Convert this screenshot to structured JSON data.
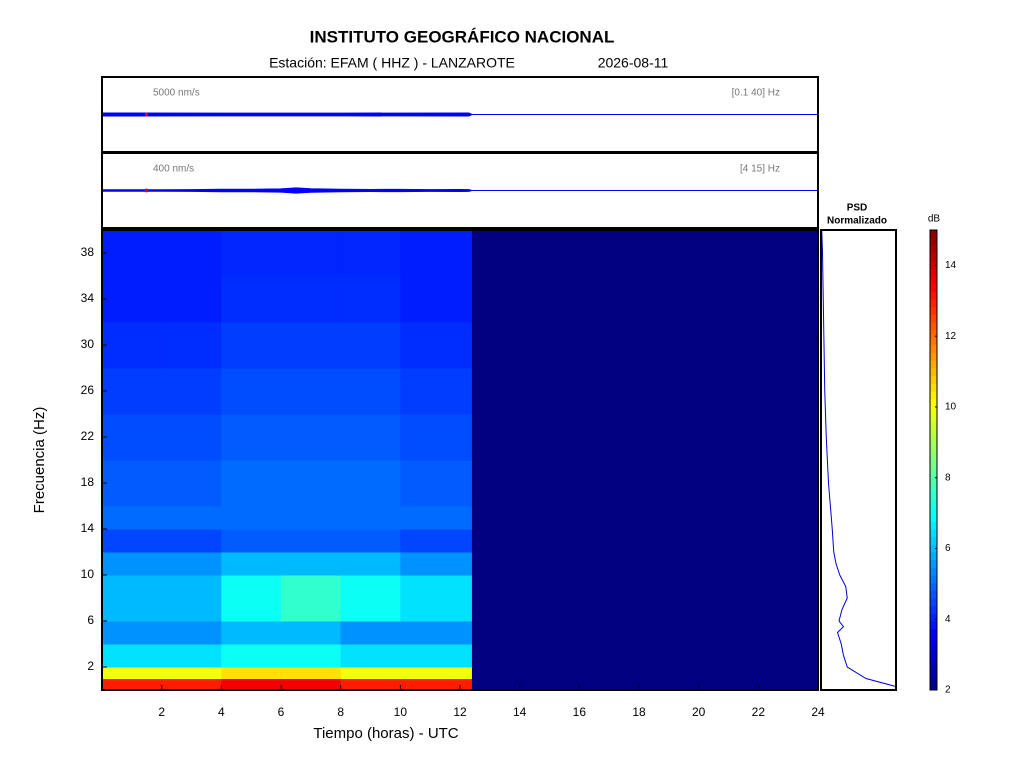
{
  "header": {
    "title": "INSTITUTO GEOGRÁFICO NACIONAL",
    "station": "Estación:  EFAM ( HHZ ) - LANZAROTE",
    "date": "2026-08-11"
  },
  "chart_data": [
    {
      "type": "trace",
      "color": "#0000ff",
      "scale_color": "#e00000",
      "scale_bar": {
        "value": 5000,
        "label": "5000 nm/s"
      },
      "band": "[0.1 40] Hz",
      "xlim": [
        0,
        24
      ],
      "ylim": [
        -53000,
        53000
      ],
      "x": [
        0,
        4,
        8,
        12.3,
        12.4,
        24
      ],
      "values": [
        2200,
        2000,
        2000,
        2100,
        0,
        0
      ]
    },
    {
      "type": "trace",
      "color": "#0000ff",
      "scale_color": "#e00000",
      "scale_bar": {
        "value": 400,
        "label": "400 nm/s"
      },
      "band": "[4 15] Hz",
      "xlim": [
        0,
        24
      ],
      "ylim": [
        -4300,
        4300
      ],
      "x": [
        0,
        2,
        3,
        4,
        5,
        6,
        6.5,
        7,
        8,
        9,
        10,
        11,
        12,
        12.3,
        12.4,
        24
      ],
      "values": [
        80,
        90,
        100,
        150,
        140,
        180,
        300,
        200,
        150,
        120,
        130,
        100,
        110,
        100,
        0,
        0
      ]
    },
    {
      "type": "heatmap",
      "xlabel": "Tiempo (horas) - UTC",
      "ylabel": "Frecuencia  (Hz)",
      "xlim": [
        0,
        24
      ],
      "ylim": [
        0,
        40
      ],
      "xticks": [
        2,
        4,
        6,
        8,
        10,
        12,
        14,
        16,
        18,
        20,
        22,
        24
      ],
      "yticks": [
        2,
        6,
        10,
        14,
        18,
        22,
        26,
        30,
        34,
        38
      ],
      "x_bins": [
        0,
        2,
        4,
        6,
        8,
        10,
        12.4,
        24
      ],
      "y_bins": [
        0,
        1,
        2,
        4,
        6,
        8,
        10,
        12,
        14,
        16,
        20,
        24,
        28,
        32,
        36,
        40
      ],
      "z": [
        [
          13,
          13,
          13.5,
          13.5,
          13,
          13,
          2
        ],
        [
          10,
          10,
          10.5,
          10.5,
          10,
          10,
          2
        ],
        [
          6.5,
          6.5,
          7,
          7,
          6.5,
          6.5,
          2
        ],
        [
          5.5,
          5.5,
          6,
          6,
          5.5,
          5.5,
          2
        ],
        [
          6,
          6,
          7,
          7.5,
          7,
          6.5,
          2
        ],
        [
          6,
          6,
          7,
          7.5,
          7,
          6.5,
          2
        ],
        [
          5.5,
          5.5,
          6,
          6,
          6,
          5.5,
          2
        ],
        [
          4.5,
          4.5,
          4.8,
          4.8,
          4.8,
          4.5,
          2
        ],
        [
          5,
          5,
          5,
          5,
          5,
          5,
          2
        ],
        [
          4.8,
          4.8,
          5,
          5,
          5,
          4.8,
          2
        ],
        [
          4.6,
          4.6,
          4.8,
          4.8,
          4.8,
          4.6,
          2
        ],
        [
          4.4,
          4.4,
          4.6,
          4.6,
          4.6,
          4.4,
          2
        ],
        [
          4.2,
          4.2,
          4.4,
          4.4,
          4.4,
          4.2,
          2
        ],
        [
          4,
          4,
          4.2,
          4.2,
          4.2,
          4,
          2
        ],
        [
          4,
          4,
          4.1,
          4.1,
          4.1,
          4,
          2
        ]
      ],
      "colormap": "jet",
      "zlim": [
        2,
        15
      ],
      "zticks": [
        2,
        4,
        6,
        8,
        10,
        12,
        14
      ],
      "colorbar_label": "dB"
    },
    {
      "type": "line",
      "title": "PSD",
      "subtitle": "Normalizado",
      "color": "#0000cc",
      "xlim": [
        0,
        1
      ],
      "ylim": [
        0,
        40
      ],
      "frequencies": [
        0.3,
        1,
        2,
        3,
        4,
        5,
        5.5,
        6,
        7,
        8,
        9,
        10,
        11,
        12,
        14,
        18,
        22,
        26,
        30,
        34,
        38,
        40
      ],
      "values": [
        1,
        0.6,
        0.35,
        0.3,
        0.27,
        0.22,
        0.3,
        0.24,
        0.28,
        0.35,
        0.33,
        0.25,
        0.2,
        0.17,
        0.15,
        0.1,
        0.07,
        0.05,
        0.04,
        0.03,
        0.02,
        0.01
      ]
    }
  ]
}
